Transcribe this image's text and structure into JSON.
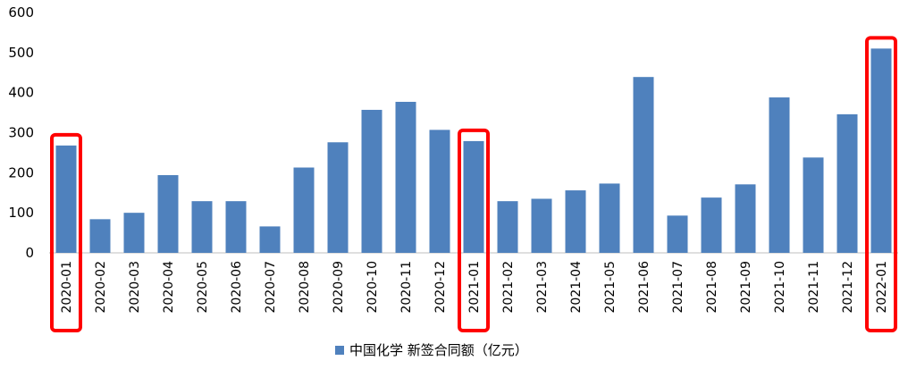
{
  "chart_data": {
    "type": "bar",
    "title": "",
    "xlabel": "",
    "ylabel": "",
    "ylim": [
      0,
      600
    ],
    "yticks": [
      0,
      100,
      200,
      300,
      400,
      500,
      600
    ],
    "grid": false,
    "legend": {
      "position": "bottom",
      "entries": [
        "中国化学 新签合同额（亿元）"
      ]
    },
    "colors": {
      "bar": "#4f81bd",
      "highlight": "#ff0000"
    },
    "categories": [
      "2020-01",
      "2020-02",
      "2020-03",
      "2020-04",
      "2020-05",
      "2020-06",
      "2020-07",
      "2020-08",
      "2020-09",
      "2020-10",
      "2020-11",
      "2020-12",
      "2021-01",
      "2021-02",
      "2021-03",
      "2021-04",
      "2021-05",
      "2021-06",
      "2021-07",
      "2021-08",
      "2021-09",
      "2021-10",
      "2021-11",
      "2021-12",
      "2022-01"
    ],
    "series": [
      {
        "name": "中国化学 新签合同额（亿元）",
        "values": [
          268,
          84,
          100,
          194,
          129,
          129,
          66,
          213,
          276,
          357,
          377,
          307,
          279,
          129,
          135,
          156,
          173,
          439,
          93,
          138,
          171,
          388,
          238,
          346,
          510
        ]
      }
    ],
    "highlighted": [
      "2020-01",
      "2021-01",
      "2022-01"
    ]
  }
}
